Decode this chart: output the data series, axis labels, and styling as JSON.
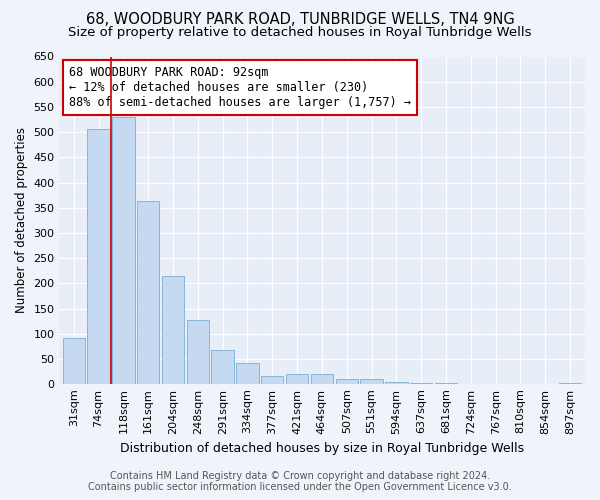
{
  "title": "68, WOODBURY PARK ROAD, TUNBRIDGE WELLS, TN4 9NG",
  "subtitle": "Size of property relative to detached houses in Royal Tunbridge Wells",
  "xlabel": "Distribution of detached houses by size in Royal Tunbridge Wells",
  "ylabel": "Number of detached properties",
  "footer_line1": "Contains HM Land Registry data © Crown copyright and database right 2024.",
  "footer_line2": "Contains public sector information licensed under the Open Government Licence v3.0.",
  "bar_labels": [
    "31sqm",
    "74sqm",
    "118sqm",
    "161sqm",
    "204sqm",
    "248sqm",
    "291sqm",
    "334sqm",
    "377sqm",
    "421sqm",
    "464sqm",
    "507sqm",
    "551sqm",
    "594sqm",
    "637sqm",
    "681sqm",
    "724sqm",
    "767sqm",
    "810sqm",
    "854sqm",
    "897sqm"
  ],
  "bar_values": [
    92,
    507,
    530,
    363,
    215,
    127,
    68,
    42,
    17,
    20,
    20,
    11,
    10,
    5,
    2,
    2,
    1,
    1,
    0,
    1,
    3
  ],
  "bar_color": "#c5d9f0",
  "bar_edge_color": "#7bafd4",
  "property_line_x": 1.5,
  "annotation_text": "68 WOODBURY PARK ROAD: 92sqm\n← 12% of detached houses are smaller (230)\n88% of semi-detached houses are larger (1,757) →",
  "annotation_box_color": "white",
  "annotation_border_color": "#cc0000",
  "vline_color": "#cc0000",
  "ylim": [
    0,
    650
  ],
  "yticks": [
    0,
    50,
    100,
    150,
    200,
    250,
    300,
    350,
    400,
    450,
    500,
    550,
    600,
    650
  ],
  "background_color": "#f0f4fa",
  "plot_bg_color": "#e8eef8",
  "grid_color": "white",
  "title_fontsize": 10.5,
  "subtitle_fontsize": 9.5,
  "xlabel_fontsize": 9,
  "ylabel_fontsize": 8.5,
  "tick_fontsize": 8,
  "annotation_fontsize": 8.5,
  "footer_fontsize": 7
}
